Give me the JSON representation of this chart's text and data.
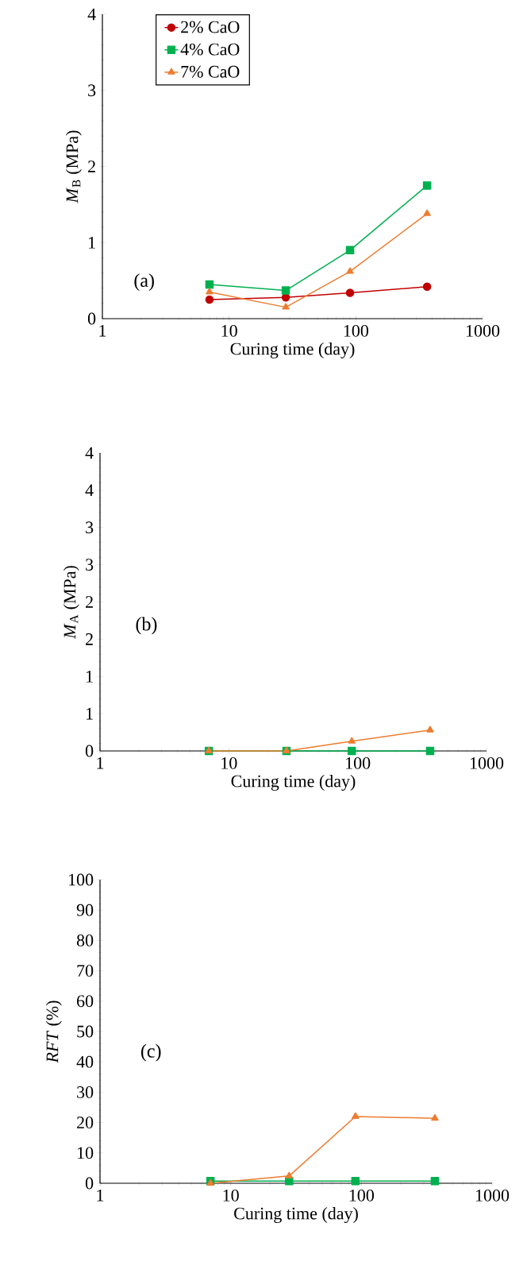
{
  "chart_data": [
    {
      "type": "line",
      "xlabel": "Curing time (day)",
      "ylabel": "*M*$_{B}$ (MPa)",
      "log": "x",
      "legend": "top left",
      "xlim": [
        1,
        1000
      ],
      "xticks": [
        1,
        10,
        100,
        1000
      ],
      "ylim": [
        0,
        4
      ],
      "yticks": [
        0,
        1,
        2,
        3,
        4
      ],
      "annotations": [
        "(a)"
      ],
      "series": [
        {
          "name": "2% CaO",
          "color": "#c00000",
          "marker": "circle",
          "x": [
            7,
            28,
            90,
            365
          ],
          "values": [
            0.25,
            0.28,
            0.34,
            0.42
          ]
        },
        {
          "name": "4% CaO",
          "color": "#00b050",
          "marker": "square",
          "x": [
            7,
            28,
            90,
            365
          ],
          "values": [
            0.45,
            0.37,
            0.9,
            1.75
          ]
        },
        {
          "name": "7% CaO",
          "color": "#ed7d31",
          "marker": "triangle",
          "x": [
            7,
            28,
            90,
            365
          ],
          "values": [
            0.35,
            0.15,
            0.62,
            1.38
          ]
        }
      ]
    },
    {
      "type": "line",
      "xlabel": "Curing time (day)",
      "ylabel": "*M*$_{A}$ (MPa)",
      "log": "x",
      "xlim": [
        1,
        1000
      ],
      "xticks": [
        1,
        10,
        100,
        1000
      ],
      "ylim": [
        0,
        4
      ],
      "yticks": [
        0,
        {
          "value": 0.5,
          "label": "1"
        },
        1,
        {
          "value": 1.5,
          "label": "2"
        },
        2,
        {
          "value": 2.5,
          "label": "3"
        },
        3,
        {
          "value": 3.5,
          "label": "4"
        },
        4
      ],
      "annotations": [
        "(b)"
      ],
      "series": [
        {
          "color": "#00b050",
          "marker": "square",
          "x": [
            7,
            28,
            90,
            365
          ],
          "values": [
            0,
            0,
            0,
            0
          ]
        },
        {
          "color": "#ed7d31",
          "marker": "triangle",
          "x": [
            7,
            28,
            90,
            365
          ],
          "values": [
            0,
            0,
            0.13,
            0.28
          ]
        }
      ]
    },
    {
      "type": "line",
      "xlabel": "Curing time (day)",
      "ylabel": "*RFT* (%)",
      "log": "x",
      "xlim": [
        1,
        1000
      ],
      "xticks": [
        1,
        10,
        100,
        1000
      ],
      "ylim": [
        0,
        100
      ],
      "yticks": [
        0,
        10,
        20,
        30,
        40,
        50,
        60,
        70,
        80,
        90,
        100
      ],
      "annotations": [
        "(c)"
      ],
      "series": [
        {
          "color": "#00b050",
          "marker": "square",
          "x": [
            7,
            28,
            90,
            365
          ],
          "values": [
            0.7,
            0.7,
            0.7,
            0.7
          ]
        },
        {
          "color": "#ed7d31",
          "marker": "triangle",
          "x": [
            7,
            28,
            90,
            365
          ],
          "values": [
            0,
            2.4,
            22,
            21.4
          ]
        }
      ]
    }
  ]
}
